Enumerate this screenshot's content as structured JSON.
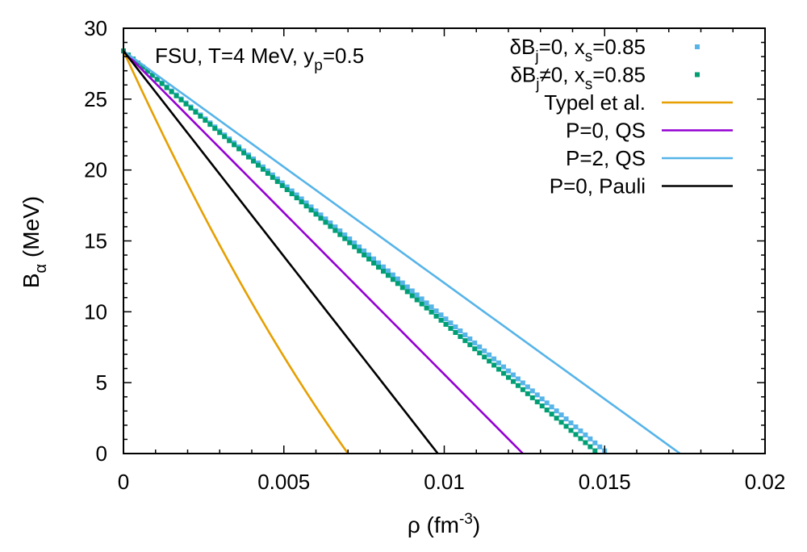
{
  "chart_data": {
    "type": "line",
    "annotation": {
      "prefix": "FSU, T=4 MeV, y",
      "sub": "p",
      "suffix": "=0.5"
    },
    "xlabel": {
      "pre": "ρ (fm",
      "sup": "-3",
      "post": ")"
    },
    "ylabel": {
      "main": "B",
      "sub": "α",
      "post": " (MeV)"
    },
    "xlim": [
      0,
      0.02
    ],
    "ylim": [
      0,
      30
    ],
    "xticks": [
      0,
      0.005,
      0.01,
      0.015,
      0.02
    ],
    "xtick_labels": [
      "0",
      "0.005",
      "0.01",
      "0.015",
      "0.02"
    ],
    "yticks": [
      0,
      5,
      10,
      15,
      20,
      25,
      30
    ],
    "ytick_labels": [
      "0",
      "5",
      "10",
      "15",
      "20",
      "25",
      "30"
    ],
    "x_minor_step": 0.001,
    "y_minor_step": 1,
    "legend_position": "top-right",
    "series": [
      {
        "name_parts": [
          "δB",
          "j",
          "=0, x",
          "s",
          "=0.85"
        ],
        "style": "points",
        "color": "#56B4E9",
        "y0": 28.4,
        "x_end": 0.0151,
        "curvature": 0.0,
        "step": 0.00015
      },
      {
        "name_parts": [
          "δB",
          "j",
          "≠0, x",
          "s",
          "=0.85"
        ],
        "style": "points",
        "color": "#009E73",
        "y0": 28.4,
        "x_end": 0.0148,
        "curvature": 0.0,
        "step": 0.00015
      },
      {
        "name": "Typel et al.",
        "style": "line",
        "color": "#E69F00",
        "y0": 28.4,
        "x_end": 0.007,
        "curvature": 0.22
      },
      {
        "name": "P=0, QS",
        "style": "line",
        "color": "#9400D3",
        "y0": 28.4,
        "x_end": 0.01245,
        "curvature": 0.0
      },
      {
        "name": "P=2, QS",
        "style": "line",
        "color": "#56B4E9",
        "y0": 28.4,
        "x_end": 0.01735,
        "curvature": 0.0
      },
      {
        "name": "P=0, Pauli",
        "style": "line",
        "color": "#000000",
        "y0": 28.4,
        "x_end": 0.0098,
        "curvature": 0.0
      }
    ]
  }
}
